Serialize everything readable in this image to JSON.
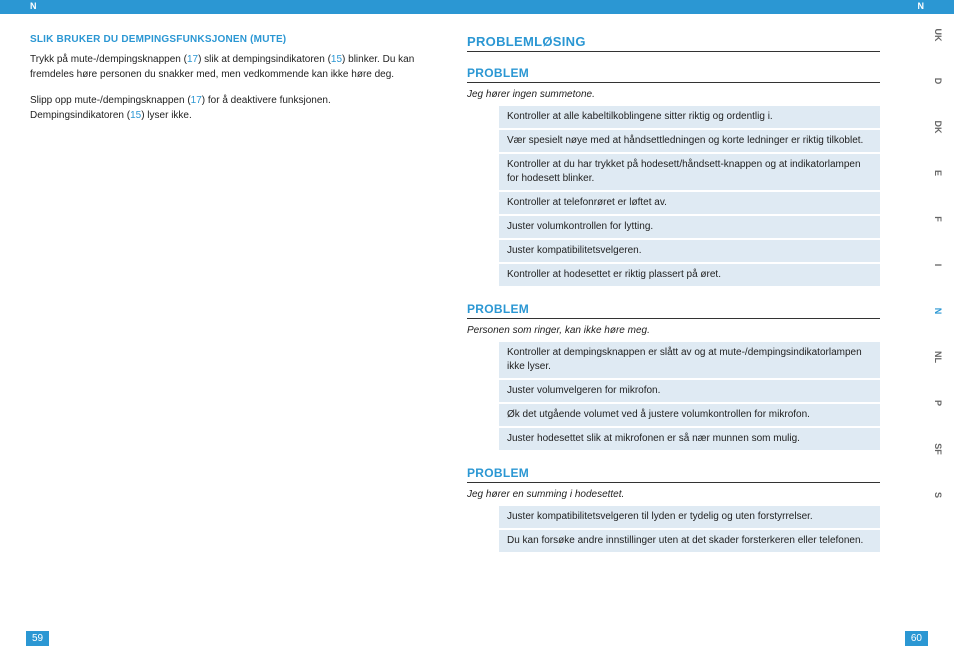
{
  "topbar": {
    "leftLabel": "N",
    "rightLabel": "N"
  },
  "langTabs": [
    "UK",
    "D",
    "DK",
    "E",
    "F",
    "I",
    "N",
    "NL",
    "P",
    "SF",
    "S"
  ],
  "activeLang": "N",
  "leftPage": {
    "sectionTitle": "SLIK BRUKER DU DEMPINGSFUNKSJONEN (MUTE)",
    "para1_a": "Trykk på mute-/dempingsknappen (",
    "para1_r1": "17",
    "para1_b": ") slik at dempingsindikatoren (",
    "para1_r2": "15",
    "para1_c": ") blinker. Du kan fremdeles høre personen du snakker med, men vedkommende kan ikke høre deg.",
    "para2_a": "Slipp opp mute-/dempingsknappen (",
    "para2_r1": "17",
    "para2_b": ") for å deaktivere funksjonen. Dempingsindikatoren (",
    "para2_r2": "15",
    "para2_c": ") lyser ikke.",
    "pageNum": "59"
  },
  "rightPage": {
    "mainTitle": "PROBLEMLØSING",
    "problems": [
      {
        "heading": "PROBLEM",
        "desc": "Jeg hører ingen summetone.",
        "solutions": [
          "Kontroller at alle kabeltilkoblingene sitter riktig og ordentlig i.",
          "Vær spesielt nøye med at håndsettledningen og korte ledninger er riktig tilkoblet.",
          "Kontroller at du har trykket på hodesett/håndsett-knappen og at indikatorlampen for hodesett blinker.",
          "Kontroller at telefonrøret er løftet av.",
          "Juster volumkontrollen for lytting.",
          "Juster kompatibilitetsvelgeren.",
          "Kontroller at hodesettet er riktig plassert på øret."
        ]
      },
      {
        "heading": "PROBLEM",
        "desc": "Personen som ringer, kan ikke høre meg.",
        "solutions": [
          "Kontroller at dempingsknappen er slått av og at mute-/dempingsindikatorlampen ikke lyser.",
          "Juster volumvelgeren for mikrofon.",
          "Øk det utgående volumet ved å justere volumkontrollen for mikrofon.",
          "Juster hodesettet slik at mikrofonen er så nær munnen som mulig."
        ]
      },
      {
        "heading": "PROBLEM",
        "desc": "Jeg hører en summing i hodesettet.",
        "solutions": [
          "Juster kompatibilitetsvelgeren til lyden er tydelig og uten forstyrrelser.",
          "Du kan forsøke andre innstillinger uten at det skader forsterkeren eller telefonen."
        ]
      }
    ],
    "pageNum": "60"
  },
  "colors": {
    "blue": "#2b97d3",
    "lightBlue": "#dfeaf3",
    "text": "#222222",
    "tabGray": "#666666"
  }
}
